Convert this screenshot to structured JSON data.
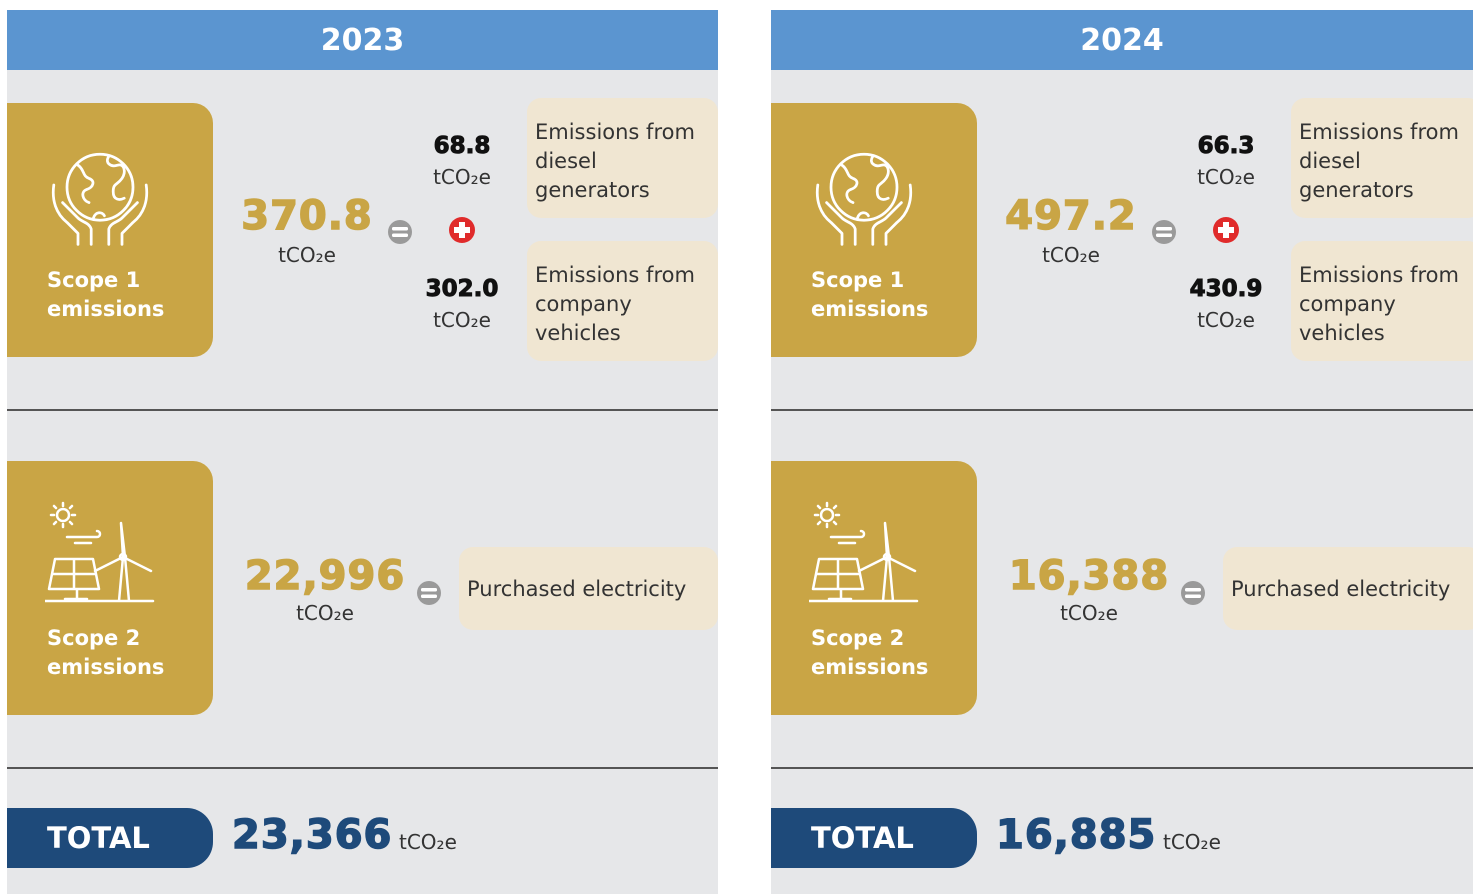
{
  "panels": [
    {
      "year": "2023",
      "scope1": {
        "label": [
          "Scope 1",
          "emissions"
        ],
        "value": "370.8",
        "unit": "tCO₂e",
        "parts": [
          {
            "value": "68.8",
            "unit": "tCO₂e",
            "label": "Emissions from diesel generators"
          },
          {
            "value": "302.0",
            "unit": "tCO₂e",
            "label": "Emissions from company vehicles"
          }
        ]
      },
      "scope2": {
        "label": [
          "Scope 2",
          "emissions"
        ],
        "value": "22,996",
        "unit": "tCO₂e",
        "part": "Purchased electricity"
      },
      "total": {
        "label": "TOTAL",
        "value": "23,366",
        "unit": "tCO₂e"
      }
    },
    {
      "year": "2024",
      "scope1": {
        "label": [
          "Scope 1",
          "emissions"
        ],
        "value": "497.2",
        "unit": "tCO₂e",
        "parts": [
          {
            "value": "66.3",
            "unit": "tCO₂e",
            "label": "Emissions from diesel generators"
          },
          {
            "value": "430.9",
            "unit": "tCO₂e",
            "label": "Emissions from company vehicles"
          }
        ]
      },
      "scope2": {
        "label": [
          "Scope 2",
          "emissions"
        ],
        "value": "16,388",
        "unit": "tCO₂e",
        "part": "Purchased electricity"
      },
      "total": {
        "label": "TOTAL",
        "value": "16,885",
        "unit": "tCO₂e"
      }
    }
  ]
}
